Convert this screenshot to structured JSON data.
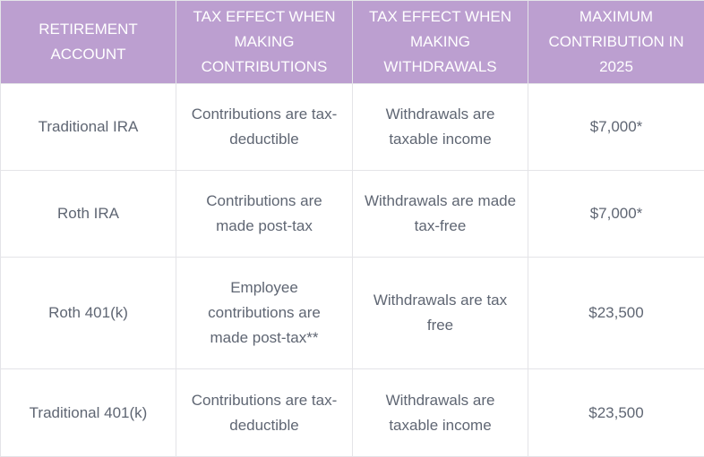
{
  "table": {
    "headers": [
      "Retirement Account",
      "Tax effect when making contributions",
      "Tax effect when making withdrawals",
      "Maximum contribution in 2025"
    ],
    "rows": [
      [
        "Traditional IRA",
        "Contributions are tax-deductible",
        "Withdrawals are taxable income",
        "$7,000*"
      ],
      [
        "Roth IRA",
        "Contributions are made post-tax",
        "Withdrawals are made tax-free",
        "$7,000*"
      ],
      [
        "Roth 401(k)",
        "Employee contributions are made post-tax**",
        "Withdrawals are tax free",
        "$23,500"
      ],
      [
        "Traditional 401(k)",
        "Contributions are tax-deductible",
        "Withdrawals are taxable income",
        "$23,500"
      ]
    ]
  },
  "colors": {
    "header_bg": "#bc9fd0",
    "header_text": "#ffffff",
    "body_text": "#5f6673",
    "border": "#e4e4e8"
  }
}
